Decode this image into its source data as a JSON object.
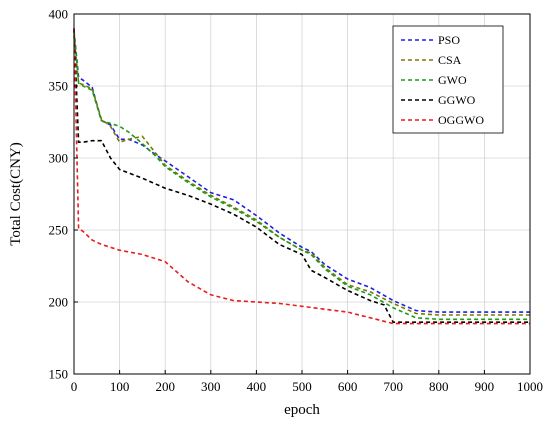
{
  "chart_data": {
    "type": "line",
    "title": "",
    "xlabel": "epoch",
    "ylabel": "Total Cost(CNY)",
    "xlim": [
      0,
      1000
    ],
    "ylim": [
      150,
      400
    ],
    "xticks": [
      0,
      100,
      200,
      300,
      400,
      500,
      600,
      700,
      800,
      900,
      1000
    ],
    "yticks": [
      150,
      200,
      250,
      300,
      350,
      400
    ],
    "grid": true,
    "legend_position": "top-right",
    "series": [
      {
        "name": "PSO",
        "color": "#1f1fe0",
        "x": [
          0,
          10,
          20,
          40,
          60,
          80,
          100,
          120,
          150,
          180,
          200,
          250,
          300,
          350,
          400,
          450,
          500,
          520,
          550,
          600,
          650,
          700,
          750,
          800,
          850,
          900,
          950,
          1000
        ],
        "y": [
          388,
          356,
          354,
          349,
          326,
          323,
          313,
          313,
          309,
          302,
          298,
          287,
          276,
          271,
          260,
          248,
          238,
          235,
          226,
          216,
          210,
          201,
          194,
          193,
          193,
          193,
          193,
          193
        ]
      },
      {
        "name": "CSA",
        "color": "#7a7a00",
        "x": [
          0,
          10,
          20,
          40,
          60,
          80,
          100,
          120,
          150,
          180,
          200,
          250,
          300,
          350,
          400,
          450,
          500,
          520,
          550,
          600,
          650,
          700,
          750,
          800,
          850,
          900,
          950,
          1000
        ],
        "y": [
          385,
          352,
          351,
          348,
          327,
          322,
          311,
          313,
          315,
          303,
          295,
          284,
          274,
          266,
          257,
          245,
          236,
          234,
          224,
          212,
          207,
          199,
          192,
          191,
          191,
          191,
          191,
          191
        ]
      },
      {
        "name": "GWO",
        "color": "#1a9e1a",
        "x": [
          0,
          10,
          20,
          40,
          60,
          80,
          100,
          120,
          150,
          180,
          200,
          250,
          300,
          350,
          400,
          450,
          500,
          520,
          550,
          600,
          650,
          700,
          750,
          800,
          850,
          900,
          950,
          1000
        ],
        "y": [
          388,
          352,
          350,
          347,
          326,
          324,
          322,
          318,
          310,
          301,
          294,
          283,
          273,
          265,
          256,
          245,
          236,
          233,
          223,
          211,
          205,
          196,
          189,
          188,
          188,
          188,
          188,
          188
        ]
      },
      {
        "name": "GGWO",
        "color": "#000000",
        "x": [
          0,
          10,
          20,
          40,
          60,
          80,
          100,
          150,
          200,
          250,
          300,
          350,
          400,
          450,
          500,
          520,
          550,
          600,
          650,
          680,
          700,
          750,
          800,
          850,
          900,
          950,
          1000
        ],
        "y": [
          390,
          311,
          311,
          312,
          312,
          300,
          292,
          286,
          279,
          274,
          268,
          261,
          252,
          240,
          233,
          222,
          217,
          208,
          201,
          198,
          186,
          186,
          186,
          186,
          186,
          186,
          186
        ]
      },
      {
        "name": "OGGWO",
        "color": "#e81d1d",
        "x": [
          0,
          10,
          20,
          40,
          60,
          80,
          100,
          150,
          200,
          250,
          300,
          350,
          400,
          450,
          500,
          550,
          600,
          650,
          700,
          750,
          800,
          850,
          900,
          950,
          1000
        ],
        "y": [
          390,
          251,
          249,
          243,
          240,
          238,
          236,
          233,
          228,
          214,
          205,
          201,
          200,
          199,
          197,
          195,
          193,
          189,
          185,
          185,
          185,
          185,
          185,
          185,
          185
        ]
      }
    ]
  }
}
